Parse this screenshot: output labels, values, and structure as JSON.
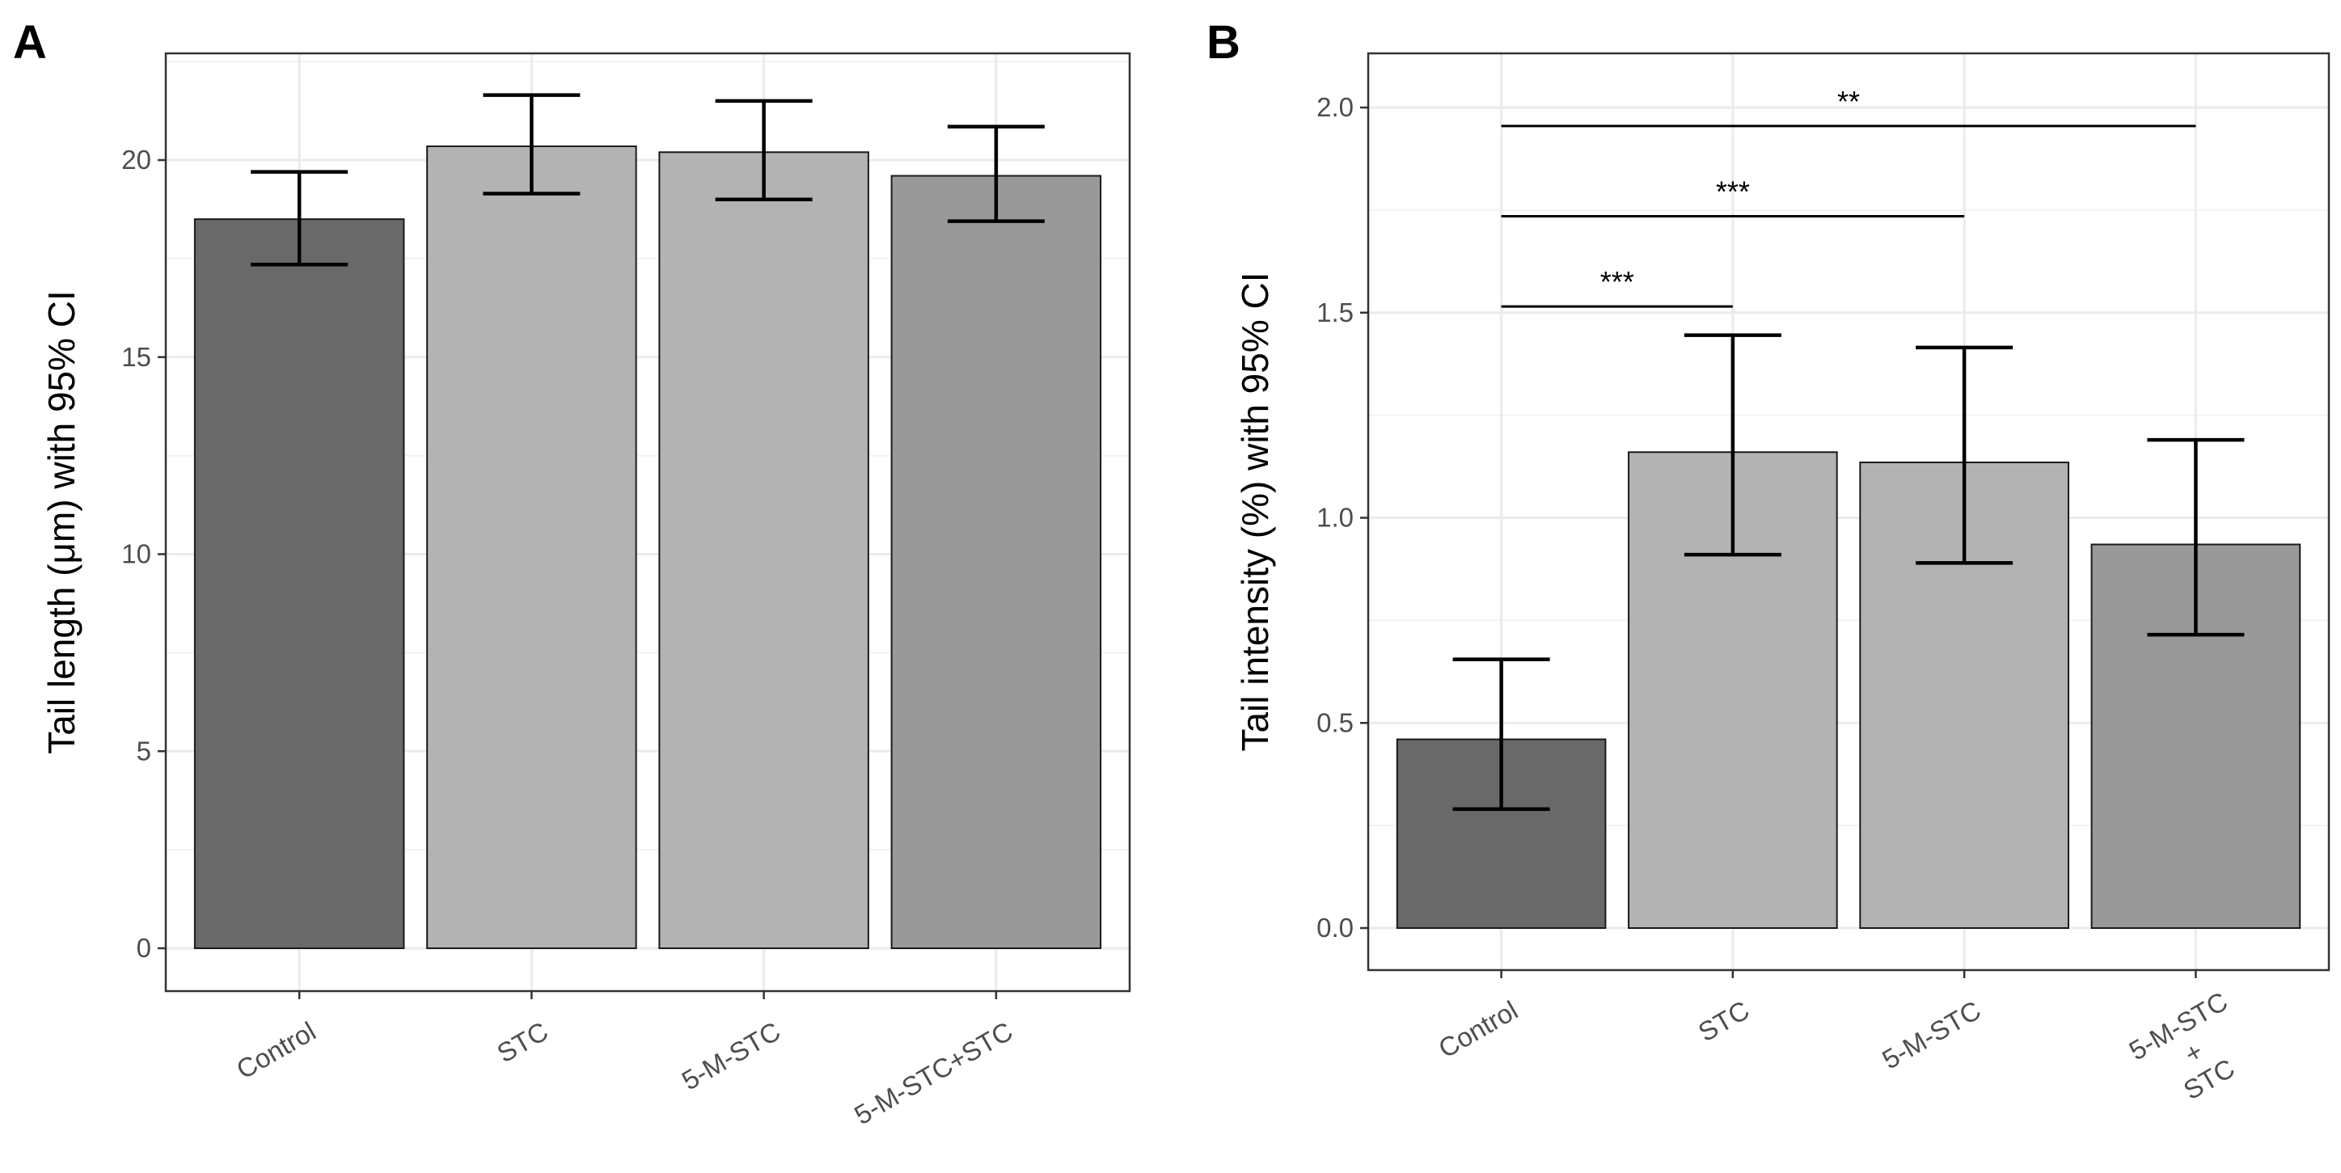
{
  "figure": {
    "panels": [
      "A",
      "B"
    ]
  },
  "chart_data": [
    {
      "panel": "A",
      "type": "bar",
      "categories": [
        "Control",
        "STC",
        "5-M-STC",
        "5-M-STC+STC"
      ],
      "values": [
        18.5,
        20.35,
        20.2,
        19.6
      ],
      "ci_low": [
        17.35,
        19.15,
        19.0,
        18.45
      ],
      "ci_high": [
        19.7,
        21.65,
        21.5,
        20.85
      ],
      "colors": [
        "#696969",
        "#b3b3b3",
        "#b3b3b3",
        "#999999"
      ],
      "title": "",
      "xlabel": "",
      "ylabel": "Tail length (μm) with 95% CI",
      "ylim": [
        0,
        22.5
      ],
      "yticks": [
        0,
        5,
        10,
        15,
        20
      ],
      "ytick_labels": [
        "0",
        "5",
        "10",
        "15",
        "20"
      ],
      "grid": true,
      "significance": []
    },
    {
      "panel": "B",
      "type": "bar",
      "categories": [
        "Control",
        "STC",
        "5-M-STC",
        "5-M-STC\n+\nSTC"
      ],
      "values": [
        0.46,
        1.16,
        1.135,
        0.935
      ],
      "ci_low": [
        0.29,
        0.91,
        0.89,
        0.715
      ],
      "ci_high": [
        0.655,
        1.445,
        1.415,
        1.19
      ],
      "colors": [
        "#696969",
        "#b3b3b3",
        "#b3b3b3",
        "#999999"
      ],
      "title": "",
      "xlabel": "",
      "ylabel": "Tail intensity (%) with 95% CI",
      "ylim": [
        0,
        2.07
      ],
      "yticks": [
        0.0,
        0.5,
        1.0,
        1.5,
        2.0
      ],
      "ytick_labels": [
        "0.0",
        "0.5",
        "1.0",
        "1.5",
        "2.0"
      ],
      "grid": true,
      "significance": [
        {
          "from": 0,
          "to": 1,
          "y": 1.515,
          "label": "***"
        },
        {
          "from": 0,
          "to": 2,
          "y": 1.735,
          "label": "***"
        },
        {
          "from": 0,
          "to": 3,
          "y": 1.955,
          "label": "**"
        }
      ]
    }
  ]
}
